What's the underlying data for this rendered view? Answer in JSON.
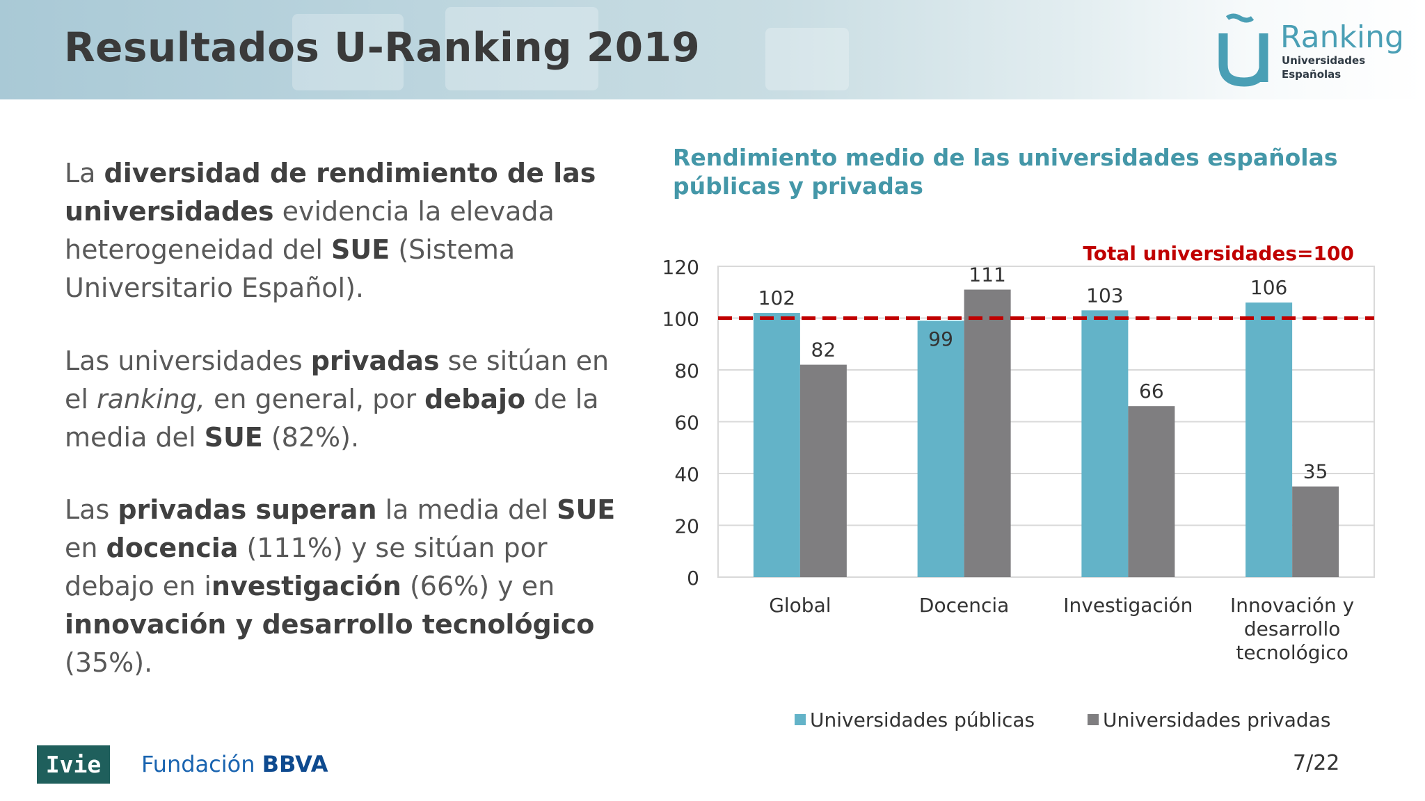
{
  "title": "Resultados U-Ranking 2019",
  "logo": {
    "word": "Ranking",
    "sub1": "Universidades",
    "sub2": "Españolas"
  },
  "paragraphs": {
    "p1": [
      {
        "t": "La ",
        "b": false
      },
      {
        "t": "diversidad de rendimiento de las universidades",
        "b": true
      },
      {
        "t": " evidencia la elevada heterogeneidad del ",
        "b": false
      },
      {
        "t": "SUE",
        "b": true
      },
      {
        "t": " (Sistema Universitario Español).",
        "b": false
      }
    ],
    "p2": [
      {
        "t": "Las universidades ",
        "b": false
      },
      {
        "t": "privadas",
        "b": true
      },
      {
        "t": " se sitúan en el ",
        "b": false
      },
      {
        "t": "ranking,",
        "i": true
      },
      {
        "t": " en general, por ",
        "b": false
      },
      {
        "t": "debajo",
        "b": true
      },
      {
        "t": " de la media del ",
        "b": false
      },
      {
        "t": "SUE",
        "b": true
      },
      {
        "t": " (82%).",
        "b": false
      }
    ],
    "p3": [
      {
        "t": "Las ",
        "b": false
      },
      {
        "t": "privadas superan",
        "b": true
      },
      {
        "t": " la media del ",
        "b": false
      },
      {
        "t": "SUE",
        "b": true
      },
      {
        "t": " en ",
        "b": false
      },
      {
        "t": "docencia",
        "b": true
      },
      {
        "t": " (111%) y se sitúan por debajo en i",
        "b": false
      },
      {
        "t": "nvestigación",
        "b": true
      },
      {
        "t": " (66%) y en ",
        "b": false
      },
      {
        "t": "innovación y desarrollo tecnológico",
        "b": true
      },
      {
        "t": " (35%).",
        "b": false
      }
    ]
  },
  "chart_data": {
    "type": "bar",
    "title": "Rendimiento medio de las universidades españolas públicas y privadas",
    "categories": [
      [
        "Global"
      ],
      [
        "Docencia"
      ],
      [
        "Investigación"
      ],
      [
        "Innovación y",
        "desarrollo",
        "tecnológico"
      ]
    ],
    "series": [
      {
        "name": "Universidades públicas",
        "values": [
          102,
          99,
          103,
          106
        ],
        "color": "#63b3c8"
      },
      {
        "name": "Universidades privadas",
        "values": [
          82,
          111,
          66,
          35
        ],
        "color": "#7f7e80"
      }
    ],
    "ylim": [
      0,
      120
    ],
    "yticks": [
      0,
      20,
      40,
      60,
      80,
      100,
      120
    ],
    "reference_line": {
      "value": 100,
      "label": "Total  universidades=100",
      "color": "#c00000"
    },
    "grid": true,
    "legend": "bottom"
  },
  "footer": {
    "ivie": "Ivie",
    "fundacion": "Fundación",
    "bbva": "BBVA",
    "page": "7/22"
  }
}
